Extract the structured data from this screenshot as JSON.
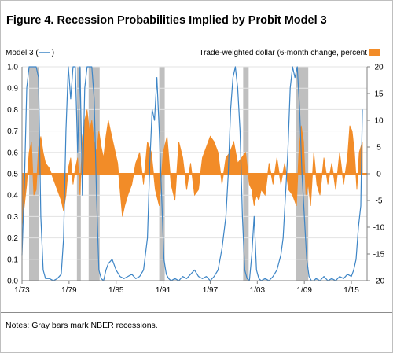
{
  "figure": {
    "title": "Figure 4. Recession Probabilities Implied by Probit Model 3",
    "notes": "Notes: Gray bars mark NBER recessions."
  },
  "chart_data": {
    "type": "line",
    "legend_left": "Model 3 (",
    "legend_left_close": ")",
    "legend_right": "Trade-weighted dollar (6-month change, percent",
    "x_ticks": [
      "1/73",
      "1/79",
      "1/85",
      "1/91",
      "1/97",
      "1/03",
      "1/09",
      "1/15"
    ],
    "x_tick_years": [
      1973,
      1979,
      1985,
      1991,
      1997,
      2003,
      2009,
      2015
    ],
    "xlim": [
      1973.0,
      2017.0
    ],
    "left_axis": {
      "ylim": [
        0,
        1
      ],
      "ticks": [
        "0.0",
        "0.1",
        "0.2",
        "0.3",
        "0.4",
        "0.5",
        "0.6",
        "0.7",
        "0.8",
        "0.9",
        "1.0"
      ]
    },
    "right_axis": {
      "ylim": [
        -20,
        20
      ],
      "ticks": [
        "-20",
        "-15",
        "-10",
        "-5",
        "0",
        "5",
        "10",
        "15",
        "20"
      ]
    },
    "recessions": [
      [
        1973.9,
        1975.2
      ],
      [
        1980.0,
        1980.5
      ],
      [
        1981.5,
        1982.9
      ],
      [
        1990.5,
        1991.2
      ],
      [
        2001.2,
        2001.9
      ],
      [
        2007.9,
        2009.5
      ]
    ],
    "colors": {
      "model": "#3d85c6",
      "dollar": "#f28c28",
      "recession": "#bfbfbf"
    },
    "series": [
      {
        "name": "Model 3",
        "axis": "left",
        "x": [
          1973.0,
          1973.3,
          1973.6,
          1973.9,
          1974.2,
          1974.5,
          1974.8,
          1975.1,
          1975.4,
          1975.7,
          1976.0,
          1976.5,
          1977.0,
          1977.5,
          1978.0,
          1978.3,
          1978.6,
          1978.9,
          1979.2,
          1979.5,
          1979.8,
          1980.1,
          1980.4,
          1980.7,
          1981.0,
          1981.3,
          1981.6,
          1981.9,
          1982.2,
          1982.5,
          1982.8,
          1983.1,
          1983.4,
          1983.7,
          1984.0,
          1984.5,
          1985.0,
          1985.5,
          1986.0,
          1986.5,
          1987.0,
          1987.5,
          1988.0,
          1988.5,
          1989.0,
          1989.3,
          1989.6,
          1989.9,
          1990.2,
          1990.5,
          1990.8,
          1991.1,
          1991.4,
          1991.7,
          1992.0,
          1992.5,
          1993.0,
          1993.5,
          1994.0,
          1994.5,
          1995.0,
          1995.5,
          1996.0,
          1996.5,
          1997.0,
          1997.5,
          1998.0,
          1998.5,
          1999.0,
          1999.3,
          1999.6,
          1999.9,
          2000.2,
          2000.5,
          2000.8,
          2001.1,
          2001.4,
          2001.7,
          2002.0,
          2002.3,
          2002.6,
          2002.9,
          2003.2,
          2003.5,
          2004.0,
          2004.5,
          2005.0,
          2005.5,
          2006.0,
          2006.3,
          2006.6,
          2006.9,
          2007.2,
          2007.5,
          2007.8,
          2008.1,
          2008.4,
          2008.7,
          2009.0,
          2009.3,
          2009.6,
          2009.9,
          2010.2,
          2010.5,
          2011.0,
          2011.5,
          2012.0,
          2012.5,
          2013.0,
          2013.5,
          2014.0,
          2014.5,
          2015.0,
          2015.3,
          2015.6,
          2015.9,
          2016.2,
          2016.4
        ],
        "values": [
          0.12,
          0.45,
          0.9,
          1.0,
          1.0,
          1.0,
          1.0,
          0.95,
          0.3,
          0.05,
          0.01,
          0.01,
          0.0,
          0.01,
          0.03,
          0.2,
          0.7,
          1.0,
          0.85,
          1.0,
          1.0,
          0.6,
          1.0,
          0.4,
          0.9,
          1.0,
          1.0,
          1.0,
          0.85,
          0.4,
          0.05,
          0.01,
          0.0,
          0.05,
          0.08,
          0.1,
          0.05,
          0.02,
          0.01,
          0.02,
          0.03,
          0.01,
          0.02,
          0.05,
          0.2,
          0.55,
          0.8,
          0.75,
          0.95,
          0.7,
          0.4,
          0.1,
          0.03,
          0.01,
          0.0,
          0.01,
          0.0,
          0.02,
          0.01,
          0.03,
          0.05,
          0.02,
          0.01,
          0.02,
          0.0,
          0.02,
          0.05,
          0.15,
          0.3,
          0.5,
          0.8,
          0.95,
          1.0,
          0.9,
          0.7,
          0.3,
          0.05,
          0.01,
          0.0,
          0.12,
          0.3,
          0.05,
          0.01,
          0.0,
          0.01,
          0.0,
          0.02,
          0.05,
          0.12,
          0.2,
          0.4,
          0.6,
          0.9,
          1.0,
          0.95,
          1.0,
          0.8,
          0.5,
          0.3,
          0.1,
          0.02,
          0.0,
          0.0,
          0.01,
          0.0,
          0.02,
          0.0,
          0.01,
          0.0,
          0.02,
          0.01,
          0.03,
          0.02,
          0.05,
          0.1,
          0.25,
          0.35,
          0.8
        ]
      },
      {
        "name": "Trade-weighted dollar (6-month change, percent",
        "axis": "right",
        "x": [
          1973.0,
          1973.3,
          1973.6,
          1973.9,
          1974.2,
          1974.5,
          1974.8,
          1975.1,
          1975.4,
          1975.7,
          1976.0,
          1976.5,
          1977.0,
          1977.5,
          1978.0,
          1978.3,
          1978.6,
          1978.9,
          1979.2,
          1979.5,
          1979.8,
          1980.1,
          1980.4,
          1980.7,
          1981.0,
          1981.3,
          1981.6,
          1981.9,
          1982.2,
          1982.5,
          1982.8,
          1983.1,
          1983.4,
          1983.7,
          1984.0,
          1984.3,
          1984.6,
          1984.9,
          1985.2,
          1985.5,
          1985.8,
          1986.1,
          1986.5,
          1987.0,
          1987.5,
          1988.0,
          1988.5,
          1989.0,
          1989.5,
          1990.0,
          1990.5,
          1991.0,
          1991.5,
          1992.0,
          1992.5,
          1993.0,
          1993.5,
          1994.0,
          1994.5,
          1995.0,
          1995.5,
          1996.0,
          1996.5,
          1997.0,
          1997.5,
          1998.0,
          1998.5,
          1999.0,
          1999.5,
          2000.0,
          2000.5,
          2001.0,
          2001.5,
          2002.0,
          2002.3,
          2002.6,
          2002.9,
          2003.2,
          2003.5,
          2004.0,
          2004.5,
          2005.0,
          2005.5,
          2006.0,
          2006.5,
          2007.0,
          2007.5,
          2008.0,
          2008.3,
          2008.6,
          2008.9,
          2009.2,
          2009.5,
          2009.8,
          2010.2,
          2010.6,
          2011.0,
          2011.5,
          2012.0,
          2012.5,
          2013.0,
          2013.5,
          2014.0,
          2014.5,
          2014.8,
          2015.1,
          2015.4,
          2015.7,
          2016.0,
          2016.4
        ],
        "values": [
          -10,
          -6,
          -2,
          4,
          6,
          -4,
          -3,
          5,
          7,
          4,
          2,
          1,
          -1,
          -3,
          -5,
          -7,
          -4,
          1,
          3,
          -2,
          1,
          3,
          -4,
          7,
          10,
          12,
          8,
          10,
          6,
          4,
          8,
          5,
          3,
          7,
          10,
          8,
          6,
          4,
          2,
          -3,
          -8,
          -6,
          -4,
          -2,
          2,
          4,
          -2,
          6,
          4,
          -3,
          -6,
          4,
          7,
          -2,
          -5,
          6,
          3,
          -3,
          2,
          -4,
          -3,
          3,
          5,
          7,
          6,
          4,
          -2,
          3,
          4,
          6,
          2,
          3,
          4,
          -2,
          -3,
          -6,
          -4,
          -5,
          -3,
          -4,
          2,
          -2,
          3,
          -2,
          2,
          -3,
          -4,
          -6,
          4,
          9,
          6,
          -4,
          -2,
          -6,
          4,
          -2,
          -4,
          3,
          -2,
          2,
          -3,
          4,
          -2,
          3,
          9,
          8,
          4,
          -3,
          4,
          6
        ]
      }
    ]
  }
}
